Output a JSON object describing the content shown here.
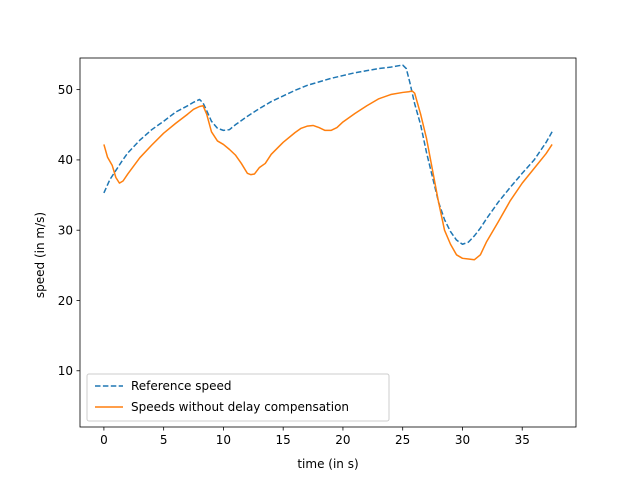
{
  "chart_data": {
    "type": "line",
    "title": "",
    "xlabel": "time (in s)",
    "ylabel": "speed (in m/s)",
    "xlim": [
      -2,
      39.5
    ],
    "ylim": [
      2,
      54.5
    ],
    "xticks": [
      0,
      5,
      10,
      15,
      20,
      25,
      30,
      35
    ],
    "yticks": [
      10,
      20,
      30,
      40,
      50
    ],
    "grid": false,
    "legend_position": "lower-left",
    "series": [
      {
        "name": "Reference speed",
        "color": "#1f77b4",
        "linestyle": "dashed",
        "x": [
          0,
          0.5,
          1,
          1.5,
          2,
          3,
          4,
          5,
          6,
          7,
          7.5,
          8,
          8.3,
          8.6,
          9,
          9.5,
          10,
          10.5,
          11,
          12,
          13,
          14,
          15,
          16,
          17,
          18,
          19,
          20,
          21,
          22,
          23,
          24,
          25,
          25.3,
          25.6,
          26,
          26.5,
          27,
          27.5,
          28,
          28.5,
          29,
          29.5,
          30,
          30.5,
          31,
          31.5,
          32,
          33,
          34,
          35,
          36,
          37,
          37.5
        ],
        "y": [
          35.3,
          37.2,
          38.5,
          39.8,
          41.0,
          42.8,
          44.3,
          45.5,
          46.8,
          47.7,
          48.2,
          48.6,
          48.1,
          47.0,
          45.5,
          44.5,
          44.2,
          44.3,
          45.0,
          46.2,
          47.3,
          48.3,
          49.1,
          49.9,
          50.6,
          51.1,
          51.6,
          52.0,
          52.4,
          52.7,
          53.0,
          53.2,
          53.5,
          53.0,
          51.0,
          48.0,
          45.0,
          41.0,
          37.5,
          34.0,
          31.5,
          29.8,
          28.6,
          28.0,
          28.3,
          29.2,
          30.3,
          31.6,
          34.0,
          36.1,
          38.1,
          40.0,
          42.5,
          44.0
        ]
      },
      {
        "name": "Speeds without delay compensation",
        "color": "#ff7f0e",
        "linestyle": "solid",
        "x": [
          0,
          0.3,
          0.7,
          1,
          1.3,
          1.6,
          2,
          3,
          4,
          5,
          6,
          7,
          7.5,
          8,
          8.3,
          8.6,
          9,
          9.5,
          10,
          10.5,
          11,
          11.5,
          12,
          12.3,
          12.6,
          13,
          13.5,
          14,
          15,
          16,
          16.5,
          17,
          17.5,
          18,
          18.5,
          19,
          19.5,
          20,
          21,
          22,
          23,
          24,
          25,
          25.5,
          25.8,
          26,
          26.5,
          27,
          27.5,
          28,
          28.5,
          29,
          29.5,
          30,
          30.5,
          31,
          31.5,
          32,
          33,
          34,
          35,
          36,
          37,
          37.5
        ],
        "y": [
          42.2,
          40.4,
          39.2,
          37.5,
          36.7,
          37.0,
          38.0,
          40.3,
          42.1,
          43.8,
          45.2,
          46.5,
          47.2,
          47.6,
          47.7,
          46.5,
          44.0,
          42.7,
          42.2,
          41.5,
          40.7,
          39.5,
          38.1,
          37.9,
          38.0,
          38.9,
          39.5,
          40.8,
          42.5,
          43.9,
          44.5,
          44.8,
          44.9,
          44.6,
          44.2,
          44.2,
          44.6,
          45.4,
          46.6,
          47.7,
          48.7,
          49.3,
          49.6,
          49.7,
          49.8,
          49.5,
          46.5,
          43.0,
          38.5,
          34.0,
          30.0,
          28.0,
          26.5,
          26.0,
          25.9,
          25.8,
          26.5,
          28.3,
          31.2,
          34.2,
          36.7,
          38.8,
          40.9,
          42.2
        ]
      }
    ]
  }
}
